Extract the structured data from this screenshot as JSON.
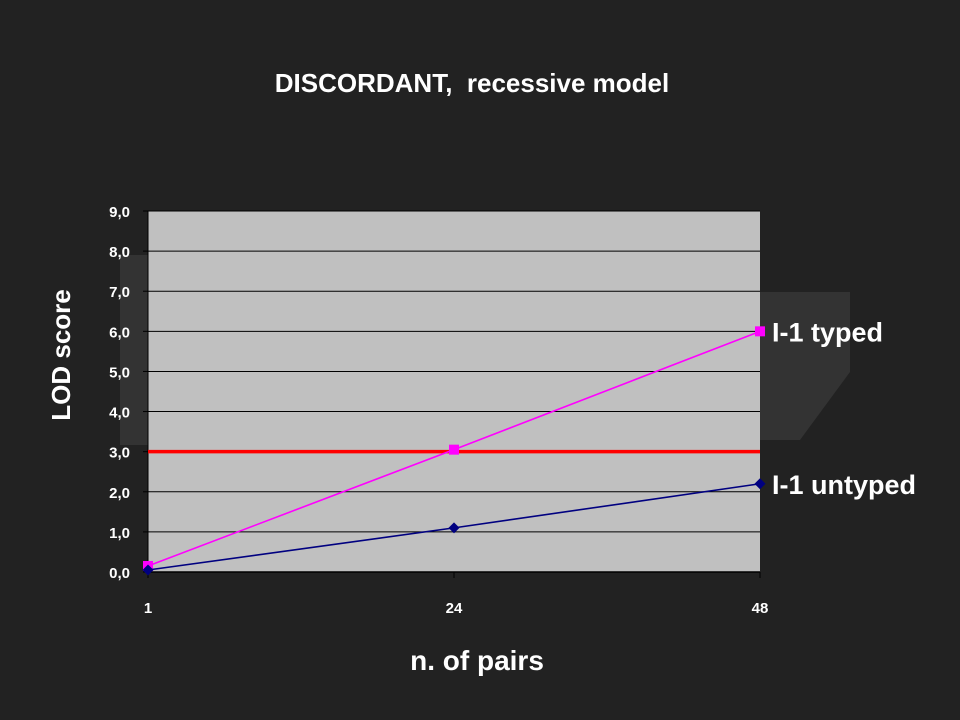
{
  "slide": {
    "background": "#222222",
    "accent_shape_color": "#333333"
  },
  "chart_data": {
    "type": "line",
    "title": "DISCORDANT,  recessive model",
    "xlabel": "n. of pairs",
    "ylabel": "LOD score",
    "categories": [
      "1",
      "24",
      "48"
    ],
    "ylim": [
      0,
      9
    ],
    "yticks": [
      "0,0",
      "1,0",
      "2,0",
      "3,0",
      "4,0",
      "5,0",
      "6,0",
      "7,0",
      "8,0",
      "9,0"
    ],
    "grid": true,
    "plot_background": "#c0c0c0",
    "series": [
      {
        "name": "I-1 typed",
        "values": [
          0.15,
          3.05,
          6.0
        ],
        "color": "#ff00ff",
        "marker": "square"
      },
      {
        "name": "I-1 untyped",
        "values": [
          0.05,
          1.1,
          2.2
        ],
        "color": "#000080",
        "marker": "diamond"
      }
    ],
    "threshold": {
      "value": 3.0,
      "color": "#ff0000"
    }
  }
}
